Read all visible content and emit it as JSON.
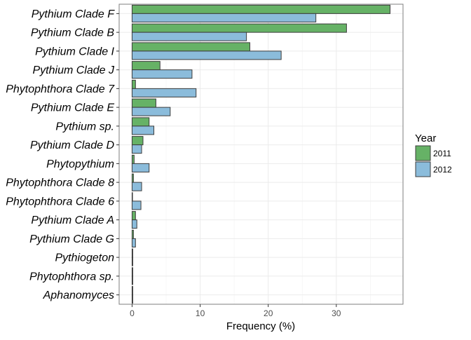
{
  "chart_data": {
    "type": "bar",
    "orientation": "horizontal",
    "categories": [
      "Pythium Clade F",
      "Pythium Clade B",
      "Pythium Clade I",
      "Pythium Clade J",
      "Phytophthora Clade 7",
      "Pythium Clade E",
      "Pythium sp.",
      "Pythium Clade D",
      "Phytopythium",
      "Phytophthora Clade 8",
      "Phytophthora Clade 6",
      "Pythium Clade A",
      "Pythium Clade G",
      "Pythiogeton",
      "Phytophthora sp.",
      "Aphanomyces"
    ],
    "series": [
      {
        "name": "2011",
        "color": "#66b266",
        "values": [
          37.9,
          31.5,
          17.3,
          4.1,
          0.5,
          3.5,
          2.5,
          1.6,
          0.3,
          0.2,
          0.0,
          0.5,
          0.2,
          0.1,
          0.1,
          0.1
        ]
      },
      {
        "name": "2012",
        "color": "#8bbcdb",
        "values": [
          27.0,
          16.8,
          21.9,
          8.8,
          9.4,
          5.6,
          3.2,
          1.4,
          2.5,
          1.4,
          1.3,
          0.7,
          0.5,
          0.1,
          0.1,
          0.1
        ]
      }
    ],
    "xlabel": "Frequency (%)",
    "ylabel": "",
    "xlim": [
      -1.9,
      39.8
    ],
    "xticks": [
      0,
      10,
      20,
      30
    ],
    "grid": true,
    "legend": {
      "title": "Year",
      "position": "right",
      "entries": [
        "2011",
        "2012"
      ]
    }
  }
}
